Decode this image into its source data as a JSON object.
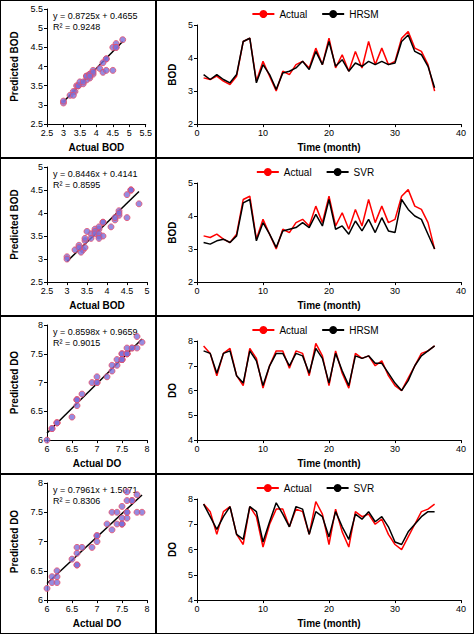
{
  "chart_data": [
    {
      "type": "scatter",
      "x_label": "Actual BOD",
      "y_label": "Predicted BOD",
      "annotations": [
        "y = 0.8725x + 0.4655",
        "R² = 0.9248"
      ],
      "fit": {
        "slope": 0.8725,
        "intercept": 0.4655
      },
      "x": [
        3.4,
        3.35,
        3.45,
        3.3,
        3.2,
        3.45,
        4.5,
        4.6,
        3.3,
        3.9,
        3.45,
        3.0,
        3.6,
        3.5,
        3.8,
        3.9,
        3.7,
        4.3,
        3.8,
        4.6,
        3.7,
        4.1,
        3.6,
        4.2,
        3.7,
        4.5,
        3.8,
        4.3,
        3.8,
        3.9,
        4.6,
        4.8,
        4.3,
        4.2,
        3.8,
        3.0
      ],
      "values": [
        3.5,
        3.35,
        3.5,
        3.35,
        3.25,
        3.5,
        4.5,
        4.6,
        3.25,
        3.8,
        3.5,
        3.05,
        3.55,
        3.6,
        3.7,
        3.9,
        3.65,
        4.2,
        3.8,
        4.5,
        3.75,
        3.95,
        3.6,
        3.85,
        3.75,
        3.9,
        3.8,
        3.9,
        3.8,
        3.85,
        4.5,
        4.7,
        4.2,
        4.1,
        3.75,
        3.1
      ],
      "color": "#7a6fd8",
      "marker": "circle",
      "xlim": [
        2.5,
        5.5
      ],
      "xticks": [
        2.5,
        3,
        3.5,
        4,
        4.5,
        5,
        5.5
      ],
      "ylim": [
        2.5,
        5.5
      ],
      "yticks": [
        2.5,
        3,
        3.5,
        4,
        4.5,
        5,
        5.5
      ],
      "grid": false
    },
    {
      "type": "line",
      "x_label": "Time (month)",
      "y_label": "BOD",
      "x": [
        1,
        2,
        3,
        4,
        5,
        6,
        7,
        8,
        9,
        10,
        11,
        12,
        13,
        14,
        15,
        16,
        17,
        18,
        19,
        20,
        21,
        22,
        23,
        24,
        25,
        26,
        27,
        28,
        29,
        30,
        31,
        32,
        33,
        34,
        35,
        36
      ],
      "series": [
        {
          "name": "Actual",
          "color": "#ff0000",
          "line_style": "solid",
          "values": [
            3.4,
            3.35,
            3.45,
            3.3,
            3.2,
            3.45,
            4.5,
            4.6,
            3.3,
            3.9,
            3.45,
            3.0,
            3.6,
            3.5,
            3.8,
            3.9,
            3.7,
            4.3,
            3.8,
            4.6,
            3.7,
            4.1,
            3.6,
            4.2,
            3.7,
            4.5,
            3.8,
            4.3,
            3.8,
            3.9,
            4.6,
            4.8,
            4.3,
            4.2,
            3.8,
            3.0
          ]
        },
        {
          "name": "HRSM",
          "color": "#000000",
          "line_style": "solid",
          "values": [
            3.5,
            3.35,
            3.5,
            3.35,
            3.25,
            3.5,
            4.5,
            4.6,
            3.25,
            3.8,
            3.5,
            3.05,
            3.55,
            3.6,
            3.7,
            3.9,
            3.65,
            4.2,
            3.8,
            4.5,
            3.75,
            3.95,
            3.6,
            3.85,
            3.75,
            3.9,
            3.8,
            3.9,
            3.8,
            3.85,
            4.5,
            4.7,
            4.2,
            4.1,
            3.75,
            3.1
          ]
        }
      ],
      "xlim": [
        0,
        40
      ],
      "xticks": [
        0,
        10,
        20,
        30,
        40
      ],
      "ylim": [
        2,
        5
      ],
      "yticks": [
        2,
        3,
        4,
        5
      ],
      "grid": false,
      "legend": "top"
    },
    {
      "type": "scatter",
      "x_label": "Actual BOD",
      "y_label": "Predicted BOD",
      "annotations": [
        "y = 0.8446x + 0.4141",
        "R² = 0.8595"
      ],
      "fit": {
        "slope": 0.8446,
        "intercept": 0.4141
      },
      "x": [
        3.4,
        3.35,
        3.45,
        3.3,
        3.2,
        3.45,
        4.5,
        4.6,
        3.3,
        3.9,
        3.45,
        3.0,
        3.6,
        3.5,
        3.8,
        3.9,
        3.7,
        4.3,
        3.8,
        4.6,
        3.7,
        4.1,
        3.6,
        4.2,
        3.7,
        4.5,
        3.8,
        4.3,
        3.8,
        3.9,
        4.6,
        4.8,
        4.3,
        4.2,
        3.8,
        3.0
      ],
      "values": [
        3.2,
        3.15,
        3.25,
        3.3,
        3.2,
        3.4,
        4.4,
        4.5,
        3.25,
        3.8,
        3.45,
        3.05,
        3.55,
        3.6,
        3.65,
        3.8,
        3.65,
        4.05,
        3.7,
        4.5,
        3.6,
        3.7,
        3.45,
        3.85,
        3.55,
        3.9,
        3.5,
        3.95,
        3.55,
        3.5,
        4.5,
        4.2,
        4.0,
        3.9,
        3.45,
        3.0
      ],
      "color": "#7a6fd8",
      "marker": "circle",
      "xlim": [
        2.5,
        5
      ],
      "xticks": [
        2.5,
        3,
        3.5,
        4,
        4.5,
        5
      ],
      "ylim": [
        2.5,
        5
      ],
      "yticks": [
        2.5,
        3,
        3.5,
        4,
        4.5,
        5
      ],
      "grid": false
    },
    {
      "type": "line",
      "x_label": "Time (month)",
      "y_label": "BOD",
      "x": [
        1,
        2,
        3,
        4,
        5,
        6,
        7,
        8,
        9,
        10,
        11,
        12,
        13,
        14,
        15,
        16,
        17,
        18,
        19,
        20,
        21,
        22,
        23,
        24,
        25,
        26,
        27,
        28,
        29,
        30,
        31,
        32,
        33,
        34,
        35,
        36
      ],
      "series": [
        {
          "name": "Actual",
          "color": "#ff0000",
          "line_style": "solid",
          "values": [
            3.4,
            3.35,
            3.45,
            3.3,
            3.2,
            3.45,
            4.5,
            4.6,
            3.3,
            3.9,
            3.45,
            3.0,
            3.6,
            3.5,
            3.8,
            3.9,
            3.7,
            4.3,
            3.8,
            4.6,
            3.7,
            4.1,
            3.6,
            4.2,
            3.7,
            4.5,
            3.8,
            4.3,
            3.8,
            3.9,
            4.6,
            4.8,
            4.3,
            4.2,
            3.8,
            3.0
          ]
        },
        {
          "name": "SVR",
          "color": "#000000",
          "line_style": "solid",
          "values": [
            3.2,
            3.15,
            3.25,
            3.3,
            3.2,
            3.4,
            4.4,
            4.5,
            3.25,
            3.8,
            3.45,
            3.05,
            3.55,
            3.6,
            3.65,
            3.8,
            3.65,
            4.05,
            3.7,
            4.5,
            3.6,
            3.7,
            3.45,
            3.85,
            3.55,
            3.9,
            3.5,
            3.95,
            3.55,
            3.5,
            4.5,
            4.2,
            4.0,
            3.9,
            3.45,
            3.0
          ]
        }
      ],
      "xlim": [
        0,
        40
      ],
      "xticks": [
        0,
        10,
        20,
        30,
        40
      ],
      "ylim": [
        2,
        5
      ],
      "yticks": [
        2,
        3,
        4,
        5
      ],
      "grid": false,
      "legend": "top"
    },
    {
      "type": "scatter",
      "x_label": "Actual DO",
      "y_label": "Predicted DO",
      "annotations": [
        "y = 0.8598x + 0.9659",
        "R² = 0.9015"
      ],
      "fit": {
        "slope": 0.8598,
        "intercept": 0.9659
      },
      "x": [
        7.8,
        7.5,
        6.6,
        7.5,
        7.7,
        6.6,
        6.2,
        7.7,
        7.3,
        6.1,
        7.0,
        7.6,
        7.6,
        6.9,
        7.6,
        7.5,
        6.6,
        7.9,
        7.4,
        6.2,
        7.6,
        6.7,
        6.1,
        7.5,
        7.3,
        7.4,
        7.0,
        7.2,
        6.6,
        6.2,
        6.0,
        6.5,
        7.0,
        7.5,
        7.6,
        7.8
      ],
      "values": [
        7.6,
        7.5,
        6.7,
        7.5,
        7.6,
        6.6,
        6.3,
        7.6,
        7.2,
        6.2,
        7.0,
        7.5,
        7.5,
        7.0,
        7.5,
        7.4,
        6.7,
        7.7,
        7.3,
        6.3,
        7.5,
        6.8,
        6.2,
        7.4,
        7.3,
        7.4,
        7.1,
        7.1,
        6.7,
        6.3,
        6.0,
        6.4,
        7.0,
        7.4,
        7.6,
        7.8
      ],
      "color": "#7a6fd8",
      "marker": "circle",
      "xlim": [
        6,
        8
      ],
      "xticks": [
        6,
        6.5,
        7,
        7.5,
        8
      ],
      "ylim": [
        6,
        8
      ],
      "yticks": [
        6,
        6.5,
        7,
        7.5,
        8
      ],
      "grid": false
    },
    {
      "type": "line",
      "x_label": "Time (month)",
      "y_label": "DO",
      "x": [
        1,
        2,
        3,
        4,
        5,
        6,
        7,
        8,
        9,
        10,
        11,
        12,
        13,
        14,
        15,
        16,
        17,
        18,
        19,
        20,
        21,
        22,
        23,
        24,
        25,
        26,
        27,
        28,
        29,
        30,
        31,
        32,
        33,
        34,
        35,
        36
      ],
      "series": [
        {
          "name": "Actual",
          "color": "#ff0000",
          "line_style": "solid",
          "values": [
            7.8,
            7.5,
            6.6,
            7.5,
            7.7,
            6.6,
            6.2,
            7.7,
            7.3,
            6.1,
            7.0,
            7.6,
            7.6,
            6.9,
            7.6,
            7.5,
            6.6,
            7.9,
            7.4,
            6.2,
            7.6,
            6.7,
            6.1,
            7.5,
            7.3,
            7.4,
            7.0,
            7.2,
            6.6,
            6.2,
            6.0,
            6.5,
            7.0,
            7.5,
            7.6,
            7.8
          ]
        },
        {
          "name": "HRSM",
          "color": "#000000",
          "line_style": "solid",
          "values": [
            7.6,
            7.5,
            6.7,
            7.5,
            7.6,
            6.6,
            6.3,
            7.6,
            7.2,
            6.2,
            7.0,
            7.5,
            7.5,
            7.0,
            7.5,
            7.4,
            6.7,
            7.7,
            7.3,
            6.3,
            7.5,
            6.8,
            6.2,
            7.4,
            7.3,
            7.4,
            7.1,
            7.1,
            6.7,
            6.3,
            6.0,
            6.4,
            7.0,
            7.4,
            7.6,
            7.8
          ]
        }
      ],
      "xlim": [
        0,
        40
      ],
      "xticks": [
        0,
        10,
        20,
        30,
        40
      ],
      "ylim": [
        4,
        8
      ],
      "yticks": [
        4,
        5,
        6,
        7,
        8
      ],
      "grid": false,
      "legend": "top"
    },
    {
      "type": "scatter",
      "x_label": "Actual DO",
      "y_label": "Predicted DO",
      "annotations": [
        "y = 0.7961x + 1.5071",
        "R² = 0.8306"
      ],
      "fit": {
        "slope": 0.7961,
        "intercept": 1.5071
      },
      "x": [
        7.8,
        7.5,
        6.6,
        7.5,
        7.7,
        6.6,
        6.2,
        7.7,
        7.3,
        6.1,
        7.0,
        7.6,
        7.6,
        6.9,
        7.6,
        7.5,
        6.6,
        7.9,
        7.4,
        6.2,
        7.6,
        6.7,
        6.1,
        7.5,
        7.3,
        7.4,
        7.0,
        7.2,
        6.6,
        6.2,
        6.0,
        6.5,
        7.0,
        7.5,
        7.6,
        7.8
      ],
      "values": [
        7.8,
        7.3,
        6.8,
        7.3,
        7.7,
        6.6,
        6.4,
        7.7,
        7.5,
        6.3,
        7.1,
        7.85,
        7.4,
        6.9,
        7.7,
        7.6,
        6.6,
        7.5,
        7.3,
        6.5,
        7.5,
        6.9,
        6.4,
        7.4,
        7.2,
        7.5,
        7.1,
        7.3,
        6.9,
        6.3,
        6.2,
        6.7,
        7.0,
        7.3,
        7.5,
        7.5
      ],
      "color": "#7a6fd8",
      "marker": "circle",
      "xlim": [
        6,
        8
      ],
      "xticks": [
        6,
        6.5,
        7,
        7.5,
        8
      ],
      "ylim": [
        6,
        8
      ],
      "yticks": [
        6,
        6.5,
        7,
        7.5,
        8
      ],
      "grid": false
    },
    {
      "type": "line",
      "x_label": "Time (month)",
      "y_label": "DO",
      "x": [
        1,
        2,
        3,
        4,
        5,
        6,
        7,
        8,
        9,
        10,
        11,
        12,
        13,
        14,
        15,
        16,
        17,
        18,
        19,
        20,
        21,
        22,
        23,
        24,
        25,
        26,
        27,
        28,
        29,
        30,
        31,
        32,
        33,
        34,
        35,
        36
      ],
      "series": [
        {
          "name": "Actual",
          "color": "#ff0000",
          "line_style": "solid",
          "values": [
            7.8,
            7.5,
            6.6,
            7.5,
            7.7,
            6.6,
            6.2,
            7.7,
            7.3,
            6.1,
            7.0,
            7.6,
            7.6,
            6.9,
            7.6,
            7.5,
            6.6,
            7.9,
            7.4,
            6.2,
            7.6,
            6.7,
            6.1,
            7.5,
            7.3,
            7.4,
            7.0,
            7.2,
            6.6,
            6.2,
            6.0,
            6.5,
            7.0,
            7.5,
            7.6,
            7.8
          ]
        },
        {
          "name": "SVR",
          "color": "#000000",
          "line_style": "solid",
          "values": [
            7.8,
            7.3,
            6.8,
            7.3,
            7.7,
            6.6,
            6.4,
            7.7,
            7.5,
            6.3,
            7.1,
            7.85,
            7.4,
            6.9,
            7.7,
            7.6,
            6.6,
            7.5,
            7.3,
            6.5,
            7.5,
            6.9,
            6.4,
            7.4,
            7.2,
            7.5,
            7.1,
            7.3,
            6.9,
            6.3,
            6.2,
            6.7,
            7.0,
            7.3,
            7.5,
            7.5
          ]
        }
      ],
      "xlim": [
        0,
        40
      ],
      "xticks": [
        0,
        10,
        20,
        30,
        40
      ],
      "ylim": [
        4,
        8
      ],
      "yticks": [
        4,
        5,
        6,
        7,
        8
      ],
      "grid": false,
      "legend": "top"
    }
  ]
}
